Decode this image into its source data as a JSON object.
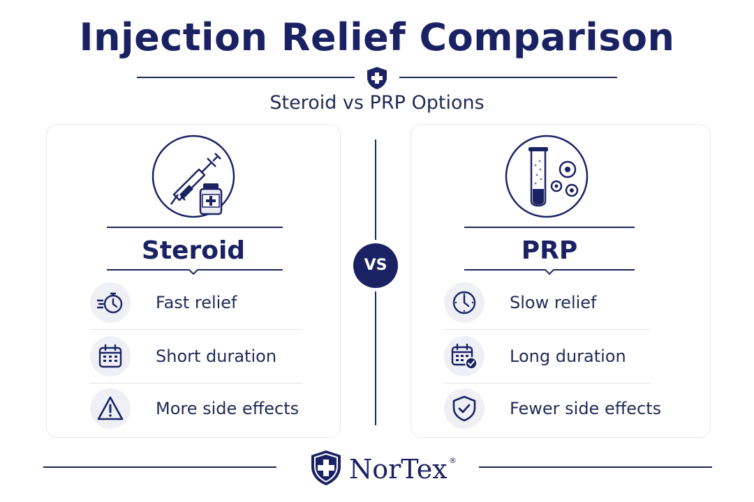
{
  "header": {
    "title": "Injection Relief Comparison",
    "subtitle": "Steroid vs PRP Options",
    "emblem_icon": "shield-cross-icon"
  },
  "vs_label": "VS",
  "cards": {
    "steroid": {
      "title": "Steroid",
      "hero_icon": "syringe-vial-icon",
      "rows": [
        {
          "icon": "fast-stopwatch-icon",
          "label": "Fast relief"
        },
        {
          "icon": "calendar-icon",
          "label": "Short duration"
        },
        {
          "icon": "warning-triangle-icon",
          "label": "More side effects"
        }
      ]
    },
    "prp": {
      "title": "PRP",
      "hero_icon": "test-tube-cells-icon",
      "rows": [
        {
          "icon": "clock-icon",
          "label": "Slow relief"
        },
        {
          "icon": "calendar-check-icon",
          "label": "Long duration"
        },
        {
          "icon": "shield-check-icon",
          "label": "Fewer side effects"
        }
      ]
    }
  },
  "footer": {
    "brand": "NorTex",
    "registered_mark": "®",
    "brand_icon": "shield-cross-icon"
  },
  "colors": {
    "navy": "#1a2263",
    "icon_bg": "#eef0f6",
    "divider": "#dfe2ea"
  }
}
